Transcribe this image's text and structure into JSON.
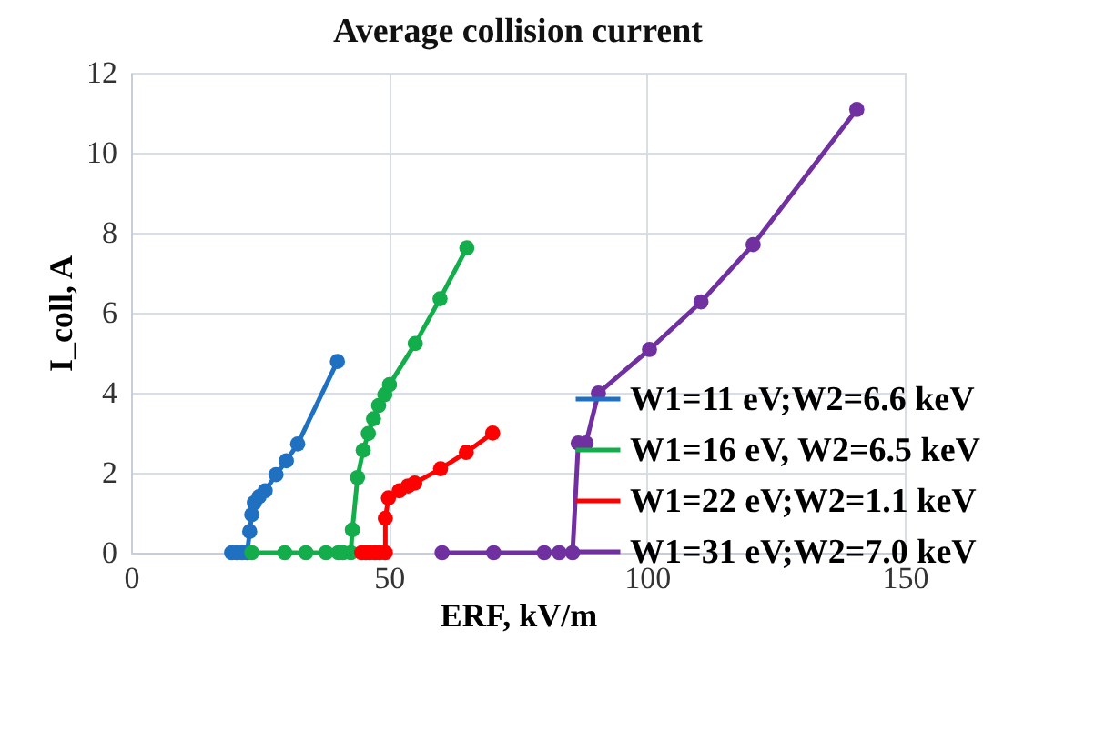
{
  "chart_data": {
    "type": "line",
    "title": "Average collision current",
    "xlabel": "ERF, kV/m",
    "ylabel": "I_coll, A",
    "xlim": [
      0,
      150
    ],
    "xticks": [
      0,
      50,
      100,
      150
    ],
    "ylim": [
      0,
      12
    ],
    "yticks": [
      0,
      2,
      4,
      6,
      8,
      10,
      12
    ],
    "grid": true,
    "legend": "bottom right",
    "marker": "circle",
    "line_style": "solid",
    "series": [
      {
        "name": "W1=11 eV;W2=6.6 keV",
        "color": "#1f70c1",
        "x": [
          19.5,
          20.5,
          21.5,
          22.5,
          23,
          23.4,
          23.9,
          24.8,
          26,
          28.1,
          30.1,
          32.3,
          40
        ],
        "values": [
          0,
          0,
          0,
          0,
          0.53,
          0.95,
          1.25,
          1.4,
          1.55,
          1.95,
          2.3,
          2.72,
          4.78
        ]
      },
      {
        "name": "W1=16 eV, W2=6.5 keV",
        "color": "#13ad4b",
        "x": [
          23.4,
          29.8,
          33.9,
          37.8,
          40.2,
          41.1,
          42.6,
          42.9,
          43.9,
          45,
          46,
          47,
          48,
          49.2,
          50.1,
          55.1,
          59.9,
          65.1
        ],
        "values": [
          0,
          0,
          0,
          0,
          0,
          0,
          0,
          0.57,
          1.88,
          2.56,
          2.98,
          3.35,
          3.68,
          3.95,
          4.2,
          5.23,
          6.35,
          7.62
        ]
      },
      {
        "name": "W1=22 eV;W2=1.1 keV",
        "color": "#ff0000",
        "x": [
          44.7,
          45.5,
          46.3,
          47.3,
          48.2,
          49.3,
          49.3,
          49.9,
          52,
          53.7,
          55,
          60,
          65,
          70.1
        ],
        "values": [
          0,
          0,
          0,
          0,
          0,
          0,
          0.86,
          1.37,
          1.55,
          1.67,
          1.74,
          2.1,
          2.51,
          2.99
        ]
      },
      {
        "name": "W1=31 eV;W2=7.0 keV",
        "color": "#7030a0",
        "x": [
          60.3,
          70.3,
          80.1,
          83,
          85.6,
          86.7,
          88.2,
          90.6,
          100.5,
          110.5,
          120.6,
          140.7
        ],
        "values": [
          0,
          0,
          0,
          0,
          0,
          2.74,
          2.74,
          3.99,
          5.08,
          6.27,
          7.7,
          11.08
        ]
      }
    ]
  }
}
